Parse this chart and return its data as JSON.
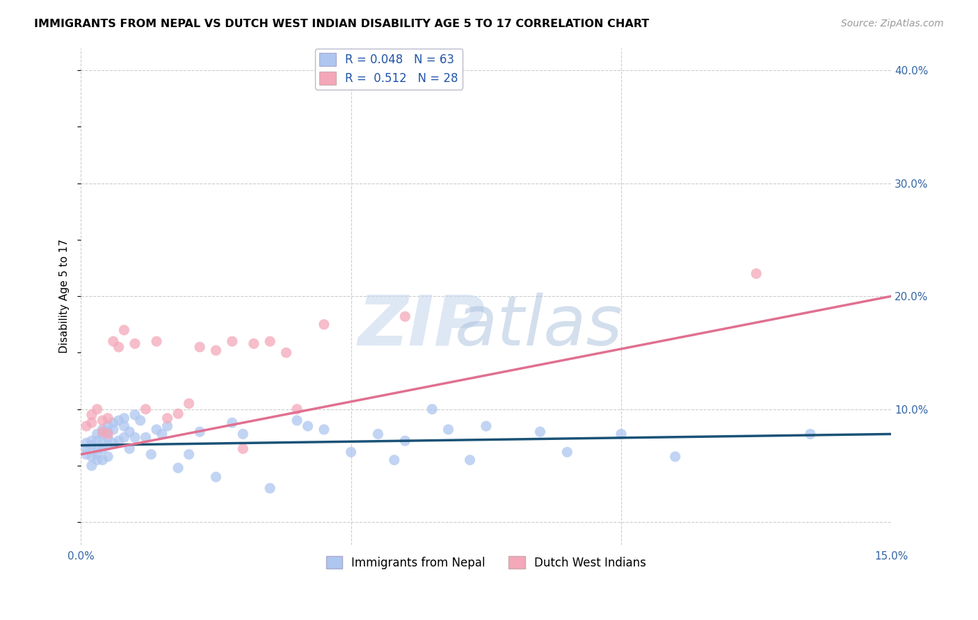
{
  "title": "IMMIGRANTS FROM NEPAL VS DUTCH WEST INDIAN DISABILITY AGE 5 TO 17 CORRELATION CHART",
  "source": "Source: ZipAtlas.com",
  "ylabel": "Disability Age 5 to 17",
  "xlim": [
    0.0,
    0.15
  ],
  "ylim": [
    -0.02,
    0.42
  ],
  "nepal_R": 0.048,
  "nepal_N": 63,
  "dwi_R": 0.512,
  "dwi_N": 28,
  "nepal_color": "#aec6f0",
  "dwi_color": "#f4a7b9",
  "nepal_line_color": "#1a5276",
  "dwi_line_color": "#e07090",
  "legend_text_color": "#2255aa",
  "background_color": "#ffffff",
  "grid_color": "#cccccc",
  "nepal_points_x": [
    0.001,
    0.001,
    0.001,
    0.002,
    0.002,
    0.002,
    0.002,
    0.003,
    0.003,
    0.003,
    0.003,
    0.003,
    0.004,
    0.004,
    0.004,
    0.004,
    0.004,
    0.005,
    0.005,
    0.005,
    0.005,
    0.005,
    0.006,
    0.006,
    0.006,
    0.007,
    0.007,
    0.008,
    0.008,
    0.008,
    0.009,
    0.009,
    0.01,
    0.01,
    0.011,
    0.012,
    0.013,
    0.014,
    0.015,
    0.016,
    0.018,
    0.02,
    0.022,
    0.025,
    0.028,
    0.03,
    0.035,
    0.04,
    0.042,
    0.045,
    0.05,
    0.055,
    0.058,
    0.06,
    0.065,
    0.068,
    0.072,
    0.075,
    0.085,
    0.09,
    0.1,
    0.11,
    0.135
  ],
  "nepal_points_y": [
    0.07,
    0.065,
    0.06,
    0.072,
    0.068,
    0.058,
    0.05,
    0.078,
    0.072,
    0.065,
    0.06,
    0.055,
    0.082,
    0.078,
    0.07,
    0.065,
    0.055,
    0.085,
    0.08,
    0.075,
    0.068,
    0.058,
    0.088,
    0.082,
    0.07,
    0.09,
    0.072,
    0.092,
    0.085,
    0.075,
    0.08,
    0.065,
    0.095,
    0.075,
    0.09,
    0.075,
    0.06,
    0.082,
    0.078,
    0.085,
    0.048,
    0.06,
    0.08,
    0.04,
    0.088,
    0.078,
    0.03,
    0.09,
    0.085,
    0.082,
    0.062,
    0.078,
    0.055,
    0.072,
    0.1,
    0.082,
    0.055,
    0.085,
    0.08,
    0.062,
    0.078,
    0.058,
    0.078
  ],
  "dwi_points_x": [
    0.001,
    0.002,
    0.002,
    0.003,
    0.004,
    0.004,
    0.005,
    0.005,
    0.006,
    0.007,
    0.008,
    0.01,
    0.012,
    0.014,
    0.016,
    0.018,
    0.02,
    0.022,
    0.025,
    0.028,
    0.03,
    0.032,
    0.035,
    0.038,
    0.04,
    0.045,
    0.06,
    0.125
  ],
  "dwi_points_y": [
    0.085,
    0.095,
    0.088,
    0.1,
    0.09,
    0.08,
    0.092,
    0.078,
    0.16,
    0.155,
    0.17,
    0.158,
    0.1,
    0.16,
    0.092,
    0.096,
    0.105,
    0.155,
    0.152,
    0.16,
    0.065,
    0.158,
    0.16,
    0.15,
    0.1,
    0.175,
    0.182,
    0.22
  ],
  "nepal_trend_x": [
    0.0,
    0.15
  ],
  "nepal_trend_y": [
    0.068,
    0.078
  ],
  "dwi_trend_x": [
    0.0,
    0.15
  ],
  "dwi_trend_y": [
    0.06,
    0.2
  ]
}
